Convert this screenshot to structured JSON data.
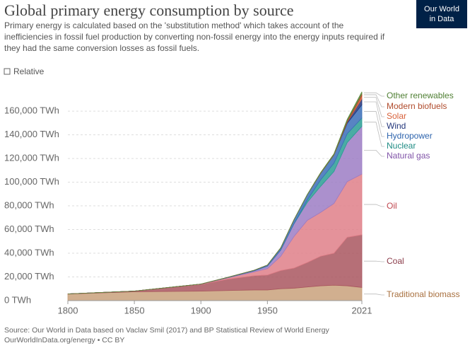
{
  "chart_data": {
    "type": "stacked-area",
    "title": "Global primary energy consumption by source",
    "subtitle": [
      "Primary energy is calculated based on the 'substitution method' which takes account of the",
      "inefficiencies in fossil fuel production by converting non-fossil energy into the energy inputs required if",
      "they had the same conversion losses as fossil fuels."
    ],
    "toggle": "Relative",
    "logo": [
      "Our World",
      "in Data"
    ],
    "source": [
      "Source: Our World in Data based on Vaclav Smil (2017) and BP Statistical Review of World Energy",
      "OurWorldInData.org/energy • CC BY"
    ],
    "x": [
      1800,
      1850,
      1900,
      1920,
      1940,
      1950,
      1960,
      1970,
      1980,
      1990,
      2000,
      2010,
      2021
    ],
    "xlim": [
      1800,
      2021
    ],
    "xticks": [
      1800,
      1850,
      1900,
      1950,
      2021
    ],
    "ylim": [
      0,
      175000
    ],
    "yticks": [
      {
        "value": 0,
        "label": "0 TWh"
      },
      {
        "value": 20000,
        "label": "20,000 TWh"
      },
      {
        "value": 40000,
        "label": "40,000 TWh"
      },
      {
        "value": 60000,
        "label": "60,000 TWh"
      },
      {
        "value": 80000,
        "label": "80,000 TWh"
      },
      {
        "value": 100000,
        "label": "100,000 TWh"
      },
      {
        "value": 120000,
        "label": "120,000 TWh"
      },
      {
        "value": 140000,
        "label": "140,000 TWh"
      },
      {
        "value": 160000,
        "label": "160,000 TWh"
      }
    ],
    "grid": true,
    "series": [
      {
        "name": "Traditional biomass",
        "color": "#c9a17b",
        "label_color": "#a8703f",
        "values": [
          5556,
          7500,
          8000,
          8500,
          9000,
          9000,
          10000,
          10500,
          11500,
          12500,
          13000,
          12500,
          11100
        ]
      },
      {
        "name": "Coal",
        "color": "#a9565f",
        "label_color": "#8a3a48",
        "values": [
          97,
          570,
          5700,
          9600,
          12000,
          12600,
          15400,
          17000,
          20700,
          25000,
          27000,
          41000,
          44500
        ]
      },
      {
        "name": "Oil",
        "color": "#df7f88",
        "label_color": "#c0474f",
        "values": [
          0,
          0,
          180,
          1100,
          3300,
          5400,
          12000,
          26700,
          35600,
          37000,
          42000,
          47000,
          51200
        ]
      },
      {
        "name": "Natural gas",
        "color": "#9c7cc4",
        "label_color": "#8154a8",
        "values": [
          0,
          0,
          60,
          240,
          830,
          2100,
          5200,
          10600,
          15200,
          22000,
          27000,
          33000,
          40400
        ]
      },
      {
        "name": "Nuclear",
        "color": "#2a9d94",
        "label_color": "#1f8c84",
        "values": [
          0,
          0,
          0,
          0,
          0,
          0,
          0,
          230,
          2000,
          5500,
          7000,
          7500,
          7000
        ]
      },
      {
        "name": "Hydropower",
        "color": "#3b6fb8",
        "label_color": "#2e64ad",
        "values": [
          0,
          0,
          0,
          200,
          500,
          950,
          1900,
          3300,
          4500,
          5500,
          7000,
          8800,
          11200
        ]
      },
      {
        "name": "Wind",
        "color": "#23367b",
        "label_color": "#23367b",
        "values": [
          0,
          0,
          0,
          0,
          0,
          0,
          0,
          0,
          0,
          10,
          80,
          900,
          4900
        ]
      },
      {
        "name": "Solar",
        "color": "#d8613a",
        "label_color": "#d8613a",
        "values": [
          0,
          0,
          0,
          0,
          0,
          0,
          0,
          0,
          0,
          0,
          0,
          90,
          2700
        ]
      },
      {
        "name": "Modern biofuels",
        "color": "#b04b2c",
        "label_color": "#b04b2c",
        "values": [
          0,
          0,
          0,
          0,
          0,
          0,
          0,
          0,
          0,
          250,
          300,
          1200,
          1700
        ]
      },
      {
        "name": "Other renewables",
        "color": "#5c8a3e",
        "label_color": "#4f7f33",
        "values": [
          0,
          0,
          0,
          0,
          0,
          0,
          50,
          100,
          200,
          400,
          600,
          1100,
          1600
        ]
      }
    ]
  }
}
